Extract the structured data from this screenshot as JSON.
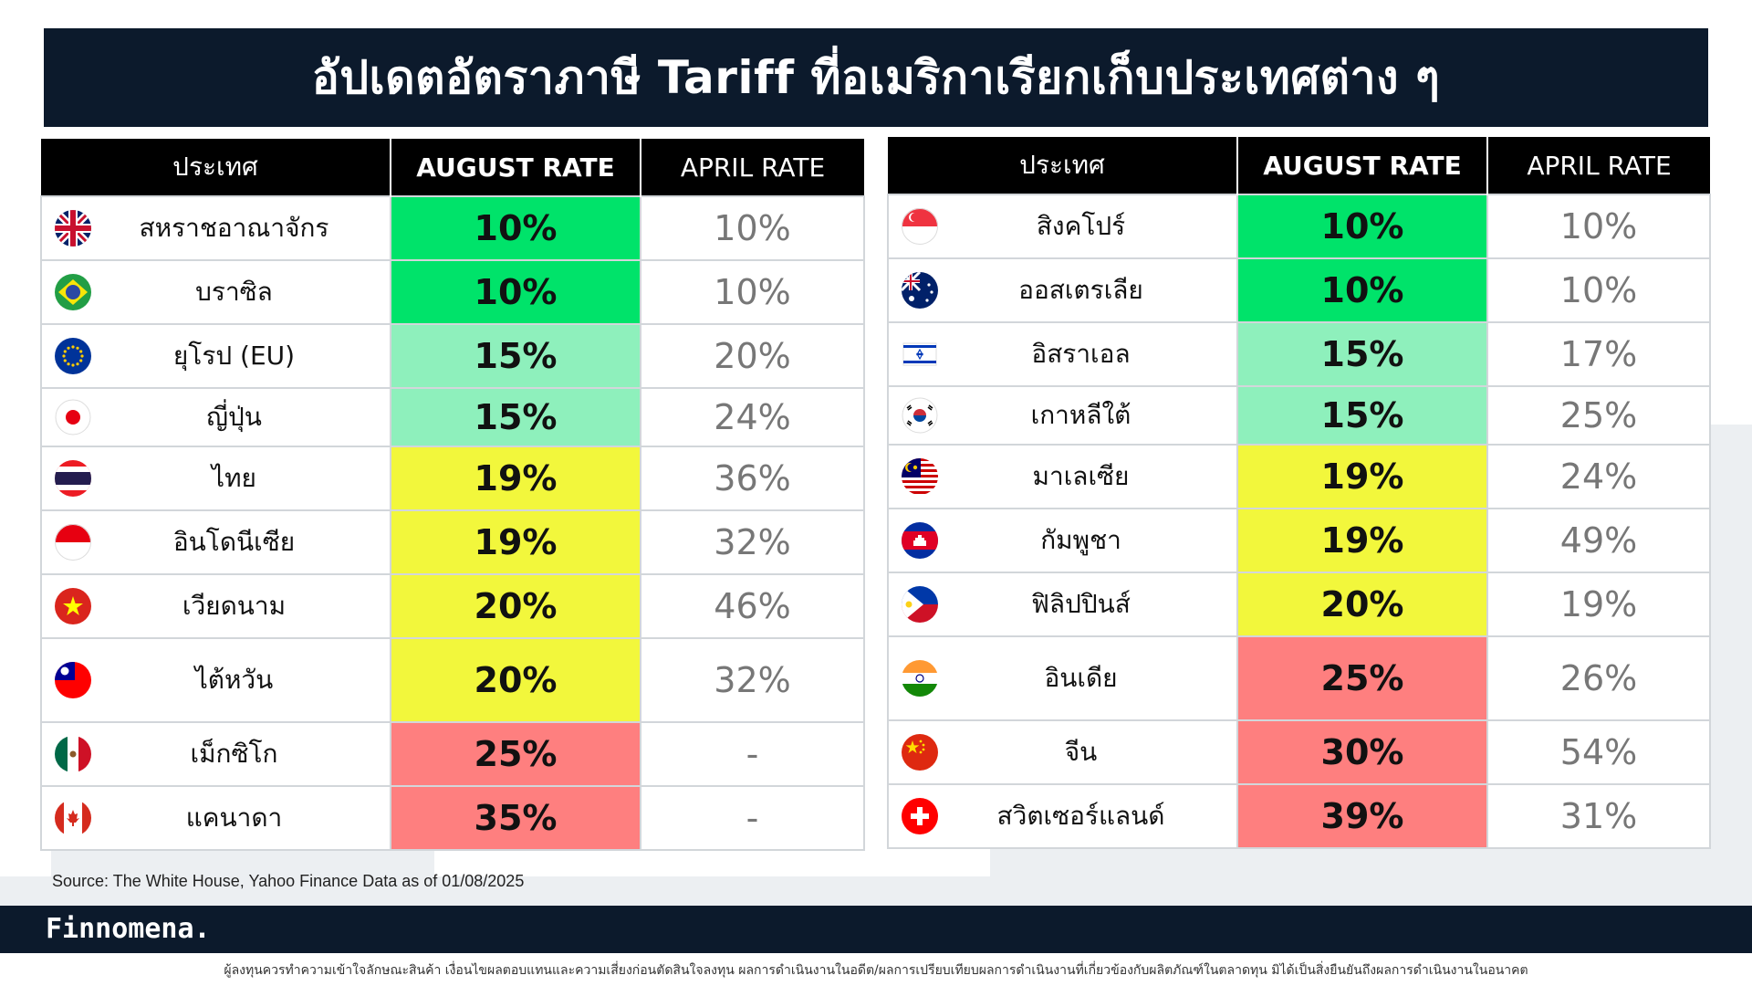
{
  "title": "อัปเดตอัตราภาษี Tariff ที่อเมริกาเรียกเก็บประเทศต่าง ๆ",
  "headers": {
    "country": "ประเทศ",
    "august": "AUGUST RATE",
    "april": "APRIL RATE"
  },
  "left_rows": [
    {
      "flag": "uk-flag-icon",
      "country": "สหราชอาณาจักร",
      "august": "10%",
      "april": "10%"
    },
    {
      "flag": "brazil-flag-icon",
      "country": "บราซิล",
      "august": "10%",
      "april": "10%"
    },
    {
      "flag": "eu-flag-icon",
      "country": "ยุโรป (EU)",
      "august": "15%",
      "april": "20%"
    },
    {
      "flag": "japan-flag-icon",
      "country": "ญี่ปุ่น",
      "august": "15%",
      "april": "24%"
    },
    {
      "flag": "thailand-flag-icon",
      "country": "ไทย",
      "august": "19%",
      "april": "36%"
    },
    {
      "flag": "indonesia-flag-icon",
      "country": "อินโดนีเซีย",
      "august": "19%",
      "april": "32%"
    },
    {
      "flag": "vietnam-flag-icon",
      "country": "เวียดนาม",
      "august": "20%",
      "april": "46%"
    },
    {
      "flag": "taiwan-flag-icon",
      "country": "ไต้หวัน",
      "august": "20%",
      "april": "32%"
    },
    {
      "flag": "mexico-flag-icon",
      "country": "เม็กซิโก",
      "august": "25%",
      "april": "-"
    },
    {
      "flag": "canada-flag-icon",
      "country": "แคนาดา",
      "august": "35%",
      "april": "-"
    }
  ],
  "right_rows": [
    {
      "flag": "singapore-flag-icon",
      "country": "สิงคโปร์",
      "august": "10%",
      "april": "10%"
    },
    {
      "flag": "australia-flag-icon",
      "country": "ออสเตรเลีย",
      "august": "10%",
      "april": "10%"
    },
    {
      "flag": "israel-flag-icon",
      "country": "อิสราเอล",
      "august": "15%",
      "april": "17%"
    },
    {
      "flag": "south-korea-flag-icon",
      "country": "เกาหลีใต้",
      "august": "15%",
      "april": "25%"
    },
    {
      "flag": "malaysia-flag-icon",
      "country": "มาเลเซีย",
      "august": "19%",
      "april": "24%"
    },
    {
      "flag": "cambodia-flag-icon",
      "country": "กัมพูชา",
      "august": "19%",
      "april": "49%"
    },
    {
      "flag": "philippines-flag-icon",
      "country": "ฟิลิปปินส์",
      "august": "20%",
      "april": "19%"
    },
    {
      "flag": "india-flag-icon",
      "country": "อินเดีย",
      "august": "25%",
      "april": "26%"
    },
    {
      "flag": "china-flag-icon",
      "country": "จีน",
      "august": "30%",
      "april": "54%"
    },
    {
      "flag": "switzerland-flag-icon",
      "country": "สวิตเซอร์แลนด์",
      "august": "39%",
      "april": "31%"
    }
  ],
  "colors": {
    "green": "#00e36a",
    "light_green": "#8ef0bc",
    "yellow": "#f2f73c",
    "red": "#fe7f7f",
    "navy": "#0c1a2c"
  },
  "source": "Source: The White House, Yahoo Finance Data as of 01/08/2025",
  "brand": "Finnomena.",
  "disclaimer": "ผู้ลงทุนควรทำความเข้าใจลักษณะสินค้า เงื่อนไขผลตอบแทนและความเสี่ยงก่อนตัดสินใจลงทุน ผลการดำเนินงานในอดีต/ผลการเปรียบเทียบผลการดำเนินงานที่เกี่ยวข้องกับผลิตภัณฑ์ในตลาดทุน มิได้เป็นสิ่งยืนยันถึงผลการดำเนินงานในอนาคต"
}
